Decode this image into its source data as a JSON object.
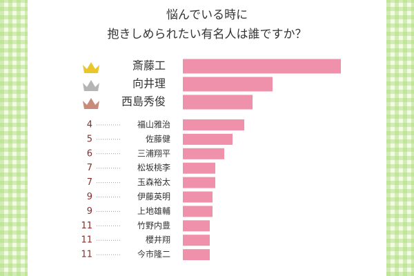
{
  "chart_data": {
    "type": "bar",
    "orientation": "horizontal",
    "title": [
      "悩んでいる時に",
      "抱きしめられたい有名人は誰ですか？"
    ],
    "categories": [
      "斎藤工",
      "向井理",
      "西島秀俊",
      "福山雅治",
      "佐藤健",
      "三浦翔平",
      "松坂桃李",
      "玉森裕太",
      "伊藤英明",
      "上地雄輔",
      "竹野内豊",
      "櫻井翔",
      "今市隆二"
    ],
    "ranks": [
      null,
      null,
      null,
      4,
      5,
      6,
      7,
      7,
      9,
      9,
      11,
      11,
      11
    ],
    "values": [
      229,
      130,
      101,
      89,
      72,
      60,
      47,
      47,
      43,
      43,
      39,
      39,
      39
    ],
    "xlim": [
      0,
      229
    ],
    "color": "#ef91aa"
  }
}
